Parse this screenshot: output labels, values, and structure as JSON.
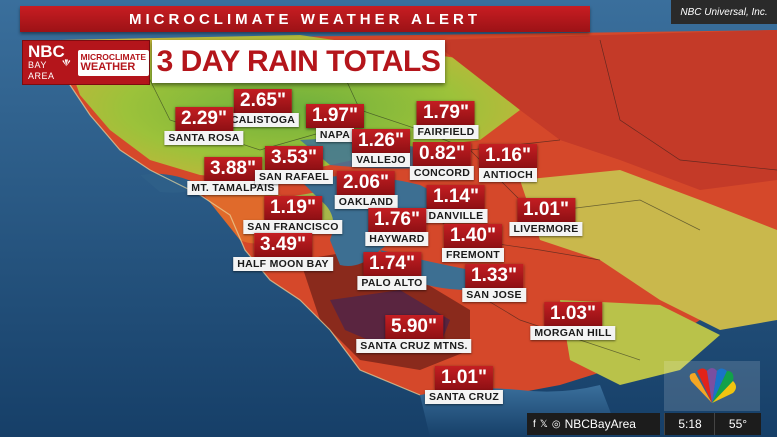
{
  "banner": "MICROCLIMATE WEATHER ALERT",
  "credit": "NBC Universal, Inc.",
  "logo": {
    "nbc": "NBC",
    "sub": "BAY AREA",
    "badge_line1": "MICROCLIMATE",
    "badge_line2": "WEATHER"
  },
  "title": "3 DAY RAIN TOTALS",
  "locations": [
    {
      "value": "2.65\"",
      "label": "CALISTOGA"
    },
    {
      "value": "2.29\"",
      "label": "SANTA ROSA"
    },
    {
      "value": "1.97\"",
      "label": "NAPA"
    },
    {
      "value": "1.79\"",
      "label": "FAIRFIELD"
    },
    {
      "value": "1.26\"",
      "label": "VALLEJO"
    },
    {
      "value": "0.82\"",
      "label": "CONCORD"
    },
    {
      "value": "1.16\"",
      "label": "ANTIOCH"
    },
    {
      "value": "3.88\"",
      "label": "MT. TAMALPAIS"
    },
    {
      "value": "3.53\"",
      "label": "SAN RAFAEL"
    },
    {
      "value": "2.06\"",
      "label": "OAKLAND"
    },
    {
      "value": "1.14\"",
      "label": "DANVILLE"
    },
    {
      "value": "1.19\"",
      "label": "SAN FRANCISCO"
    },
    {
      "value": "1.01\"",
      "label": "LIVERMORE"
    },
    {
      "value": "1.76\"",
      "label": "HAYWARD"
    },
    {
      "value": "1.40\"",
      "label": "FREMONT"
    },
    {
      "value": "3.49\"",
      "label": "HALF MOON BAY"
    },
    {
      "value": "1.74\"",
      "label": "PALO ALTO"
    },
    {
      "value": "1.33\"",
      "label": "SAN JOSE"
    },
    {
      "value": "1.03\"",
      "label": "MORGAN HILL"
    },
    {
      "value": "5.90\"",
      "label": "SANTA CRUZ MTNS."
    },
    {
      "value": "1.01\"",
      "label": "SANTA CRUZ"
    }
  ],
  "social": "NBCBayArea",
  "time": "5:18",
  "temp": "55°",
  "colors": {
    "brand_red": "#b4151b",
    "ocean": "#1d4f7e"
  }
}
